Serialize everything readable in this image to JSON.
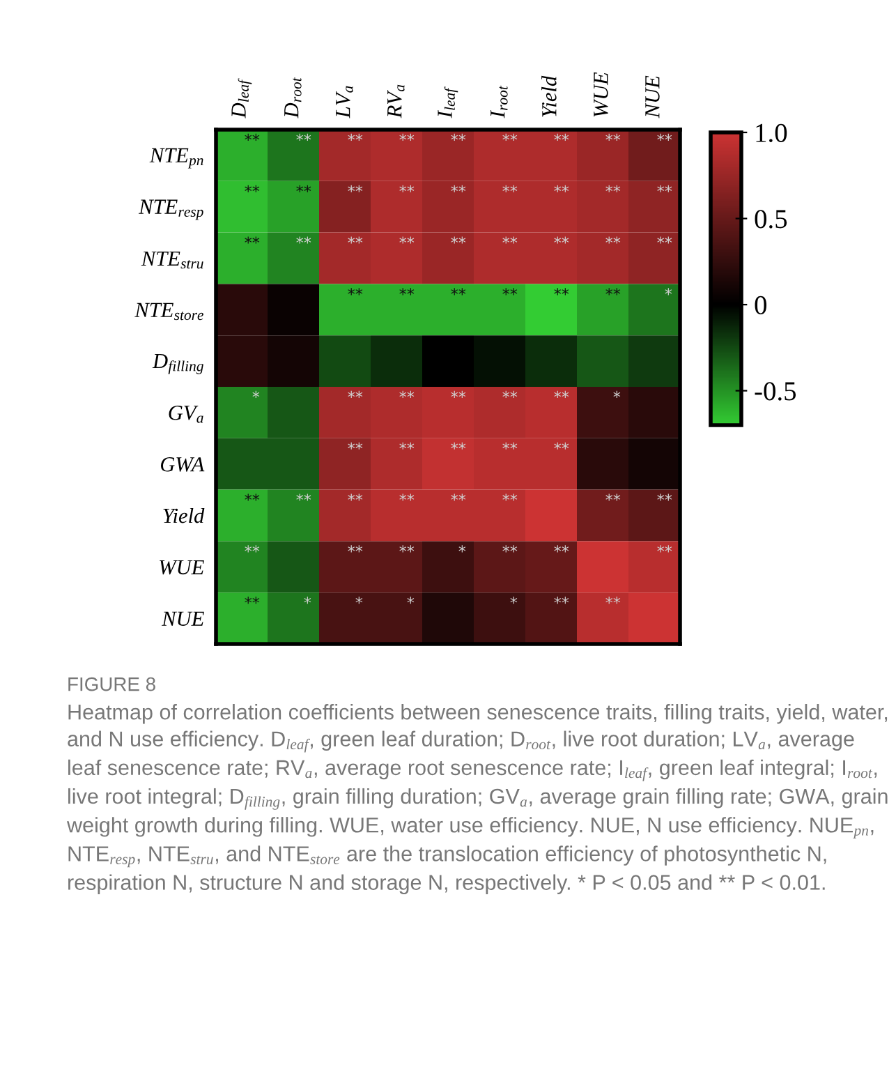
{
  "chart_data": {
    "type": "heatmap",
    "title": "FIGURE 8",
    "categories": [
      "D$_{leaf}$",
      "D$_{root}$",
      "LV$_{a}$",
      "RV$_{a}$",
      "I$_{leaf}$",
      "I$_{root}$",
      "Yield",
      "WUE",
      "NUE"
    ],
    "y_categories": [
      "NTE$_{pn}$",
      "NTE$_{resp}$",
      "NTE$_{stru}$",
      "NTE$_{store}$",
      "D$_{filling}$",
      "GV$_{a}$",
      "GWA",
      "Yield",
      "WUE",
      "NUE"
    ],
    "cells": [
      [
        -0.6,
        -0.4,
        0.8,
        0.85,
        0.75,
        0.85,
        0.85,
        0.75,
        0.55
      ],
      [
        -0.65,
        -0.55,
        0.65,
        0.85,
        0.75,
        0.85,
        0.85,
        0.8,
        0.7
      ],
      [
        -0.6,
        -0.45,
        0.8,
        0.85,
        0.75,
        0.85,
        0.85,
        0.8,
        0.7
      ],
      [
        0.2,
        0.05,
        -0.6,
        -0.6,
        -0.6,
        -0.6,
        -0.7,
        -0.55,
        -0.4
      ],
      [
        0.2,
        0.1,
        -0.25,
        -0.15,
        0.0,
        -0.05,
        -0.15,
        -0.3,
        -0.2
      ],
      [
        -0.45,
        -0.3,
        0.8,
        0.85,
        0.9,
        0.85,
        0.9,
        0.3,
        0.2
      ],
      [
        -0.3,
        -0.3,
        0.7,
        0.85,
        0.95,
        0.9,
        0.9,
        0.2,
        0.1
      ],
      [
        -0.6,
        -0.45,
        0.8,
        0.9,
        0.9,
        0.9,
        1.0,
        0.55,
        0.45
      ],
      [
        -0.45,
        -0.3,
        0.45,
        0.45,
        0.3,
        0.45,
        0.5,
        1.0,
        0.9
      ],
      [
        -0.6,
        -0.4,
        0.35,
        0.35,
        0.15,
        0.3,
        0.4,
        0.9,
        1.0
      ]
    ],
    "cell_labels": [
      [
        "**",
        "**",
        "**",
        "**",
        "**",
        "**",
        "**",
        "**",
        "**"
      ],
      [
        "**",
        "**",
        "**",
        "**",
        "**",
        "**",
        "**",
        "**",
        "**"
      ],
      [
        "**",
        "**",
        "**",
        "**",
        "**",
        "**",
        "**",
        "**",
        "**"
      ],
      [
        null,
        null,
        "**",
        "**",
        "**",
        "**",
        "**",
        "**",
        "*"
      ],
      [
        null,
        null,
        null,
        null,
        null,
        null,
        null,
        null,
        null
      ],
      [
        "*",
        null,
        "**",
        "**",
        "**",
        "**",
        "**",
        "*",
        null
      ],
      [
        null,
        null,
        "**",
        "**",
        "**",
        "**",
        "**",
        null,
        null
      ],
      [
        "**",
        "**",
        "**",
        "**",
        "**",
        "**",
        null,
        "**",
        "**"
      ],
      [
        "**",
        null,
        "**",
        "**",
        "*",
        "**",
        "**",
        null,
        "**"
      ],
      [
        "**",
        "*",
        "*",
        "*",
        null,
        "*",
        "**",
        "**",
        null
      ]
    ],
    "clim": [
      -0.7,
      1.0
    ],
    "cticks": [
      {
        "value": 1.0,
        "label": "1.0"
      },
      0.5,
      0,
      -0.5
    ],
    "annotations": [
      "Heatmap of correlation coefficients between senescence traits, filling traits, yield, water, and N use efficiency. D$_{leaf}$, green leaf duration; D$_{root}$, live root duration; LV$_{a}$, average leaf senescence rate; RV$_{a}$, average root senescence rate; I$_{leaf}$, green leaf integral; I$_{root}$, live root integral; D$_{filling}$, grain filling duration; GV$_{a}$, average grain filling rate; GWA, grain weight growth during filling. WUE, water use efficiency. NUE, N use efficiency. NUE$_{pn}$, NTE$_{resp}$, NTE$_{stru}$, and NTE$_{store}$ are the translocation efficiency of photosynthetic N, respiration N, structure N and storage N, respectively. * P < 0.05 and ** P < 0.01."
    ]
  }
}
